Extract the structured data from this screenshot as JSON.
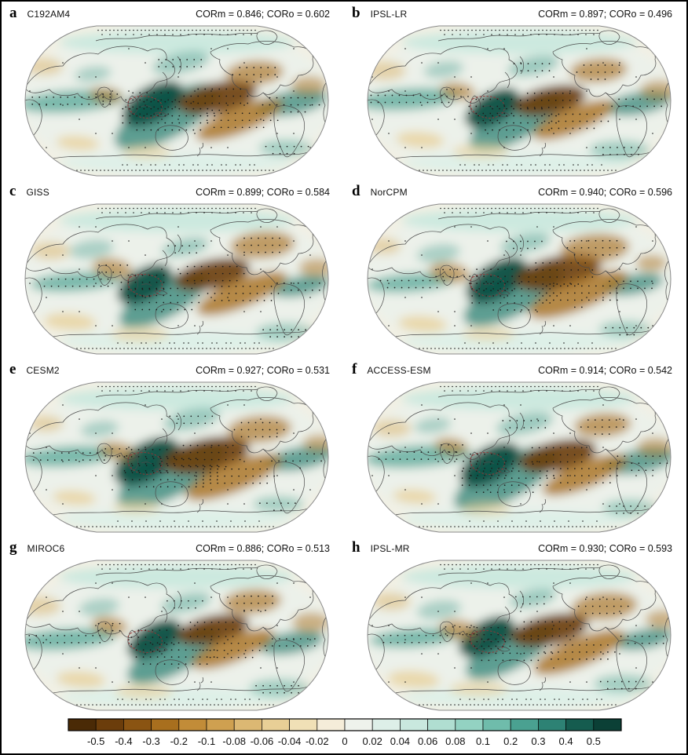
{
  "figure": {
    "panels": [
      {
        "letter": "a",
        "model": "C192AM4",
        "stats": "CORm = 0.846; CORo = 0.602"
      },
      {
        "letter": "b",
        "model": "IPSL-LR",
        "stats": "CORm = 0.897; CORo = 0.496"
      },
      {
        "letter": "c",
        "model": "GISS",
        "stats": "CORm = 0.899; CORo = 0.584"
      },
      {
        "letter": "d",
        "model": "NorCPM",
        "stats": "CORm = 0.940; CORo = 0.596"
      },
      {
        "letter": "e",
        "model": "CESM2",
        "stats": "CORm = 0.927; CORo = 0.531"
      },
      {
        "letter": "f",
        "model": "ACCESS-ESM",
        "stats": "CORm = 0.914; CORo = 0.542"
      },
      {
        "letter": "g",
        "model": "MIROC6",
        "stats": "CORm = 0.886; CORo = 0.513"
      },
      {
        "letter": "h",
        "model": "IPSL-MR",
        "stats": "CORm = 0.930; CORo = 0.593"
      }
    ],
    "colorbar": {
      "orientation": "horizontal",
      "tick_labels": [
        "-0.5",
        "-0.4",
        "-0.3",
        "-0.2",
        "-0.1",
        "-0.08",
        "-0.06",
        "-0.04",
        "-0.02",
        "0",
        "0.02",
        "0.04",
        "0.06",
        "0.08",
        "0.1",
        "0.2",
        "0.3",
        "0.4",
        "0.5"
      ],
      "segment_colors": [
        "#4a2a06",
        "#6b3d0b",
        "#8a5412",
        "#a86f1e",
        "#c28c38",
        "#cfa050",
        "#dcb873",
        "#e8cf96",
        "#f0e0b6",
        "#f5edd9",
        "#eef2ec",
        "#ddefe8",
        "#c9e8de",
        "#b0ded1",
        "#93d2c2",
        "#6fbcab",
        "#4aa191",
        "#2d8274",
        "#155c4f",
        "#0b4036"
      ]
    }
  },
  "chart_data": {
    "type": "heatmap",
    "subtype": "global_anomaly_correlation_maps",
    "projection": "Robinson",
    "n_panels": 8,
    "panels": [
      {
        "label": "a",
        "model": "C192AM4",
        "CORm": 0.846,
        "CORo": 0.602
      },
      {
        "label": "b",
        "model": "IPSL-LR",
        "CORm": 0.897,
        "CORo": 0.496
      },
      {
        "label": "c",
        "model": "GISS",
        "CORm": 0.899,
        "CORo": 0.584
      },
      {
        "label": "d",
        "model": "NorCPM",
        "CORm": 0.94,
        "CORo": 0.596
      },
      {
        "label": "e",
        "model": "CESM2",
        "CORm": 0.927,
        "CORo": 0.531
      },
      {
        "label": "f",
        "model": "ACCESS-ESM",
        "CORm": 0.914,
        "CORo": 0.542
      },
      {
        "label": "g",
        "model": "MIROC6",
        "CORm": 0.886,
        "CORo": 0.513
      },
      {
        "label": "h",
        "model": "IPSL-MR",
        "CORm": 0.93,
        "CORo": 0.593
      }
    ],
    "colorbar": {
      "orientation": "horizontal",
      "position": "bottom",
      "tick_labels": [
        "-0.5",
        "-0.4",
        "-0.3",
        "-0.2",
        "-0.1",
        "-0.08",
        "-0.06",
        "-0.04",
        "-0.02",
        "0",
        "0.02",
        "0.04",
        "0.06",
        "0.08",
        "0.1",
        "0.2",
        "0.3",
        "0.4",
        "0.5"
      ],
      "segment_colors": [
        "#4a2a06",
        "#6b3d0b",
        "#8a5412",
        "#a86f1e",
        "#c28c38",
        "#cfa050",
        "#dcb873",
        "#e8cf96",
        "#f0e0b6",
        "#f5edd9",
        "#eef2ec",
        "#ddefe8",
        "#c9e8de",
        "#b0ded1",
        "#93d2c2",
        "#6fbcab",
        "#4aa191",
        "#2d8274",
        "#155c4f",
        "#0b4036"
      ],
      "negative_color_family": "brown",
      "positive_color_family": "teal"
    }
  }
}
